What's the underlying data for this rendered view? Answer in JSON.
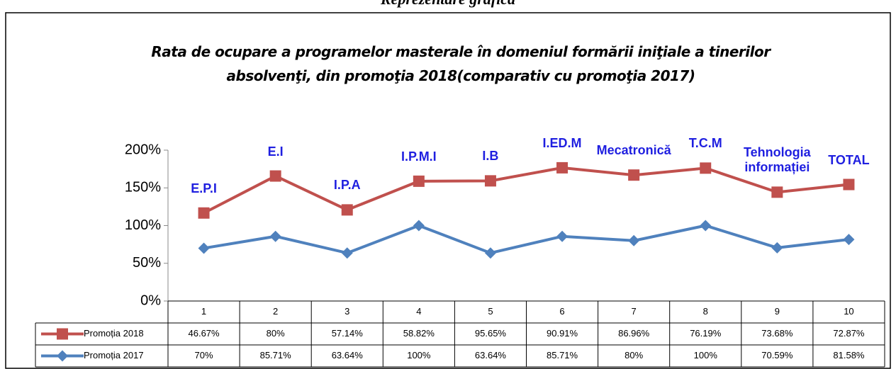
{
  "heading": "Reprezentare grafică",
  "chart_data": {
    "type": "line",
    "stacked": true,
    "title": "Rata de ocupare a programelor masterale în domeniul formării iniţiale a tinerilor absolvenţi, din promoţia 2018(comparativ cu promoţia 2017)",
    "categories": [
      1,
      2,
      3,
      4,
      5,
      6,
      7,
      8,
      9,
      10
    ],
    "point_labels": [
      "E.P.I",
      "E.I",
      "I.P.A",
      "I.P.M.I",
      "I.B",
      "I.ED.M",
      "Mecatronică",
      "T.C.M",
      "Tehnologia informației",
      "TOTAL"
    ],
    "series": [
      {
        "name": "Promoția 2018",
        "color": "#c0504d",
        "marker": "square",
        "values": [
          46.67,
          80,
          57.14,
          58.82,
          95.65,
          90.91,
          86.96,
          76.19,
          73.68,
          72.87
        ],
        "value_labels": [
          "46.67%",
          "80%",
          "57.14%",
          "58.82%",
          "95.65%",
          "90.91%",
          "86.96%",
          "76.19%",
          "73.68%",
          "72.87%"
        ]
      },
      {
        "name": "Promoția 2017",
        "color": "#4f81bd",
        "marker": "diamond",
        "values": [
          70,
          85.71,
          63.64,
          100,
          63.64,
          85.71,
          80,
          100,
          70.59,
          81.58
        ],
        "value_labels": [
          "70%",
          "85.71%",
          "63.64%",
          "100%",
          "63.64%",
          "85.71%",
          "80%",
          "100%",
          "70.59%",
          "81.58%"
        ]
      }
    ],
    "ylim": [
      0,
      200
    ],
    "yticks": [
      {
        "value": 0,
        "label": "0%"
      },
      {
        "value": 50,
        "label": "50%"
      },
      {
        "value": 100,
        "label": "100%"
      },
      {
        "value": 150,
        "label": "150%"
      },
      {
        "value": 200,
        "label": "200%"
      }
    ],
    "grid": false
  }
}
